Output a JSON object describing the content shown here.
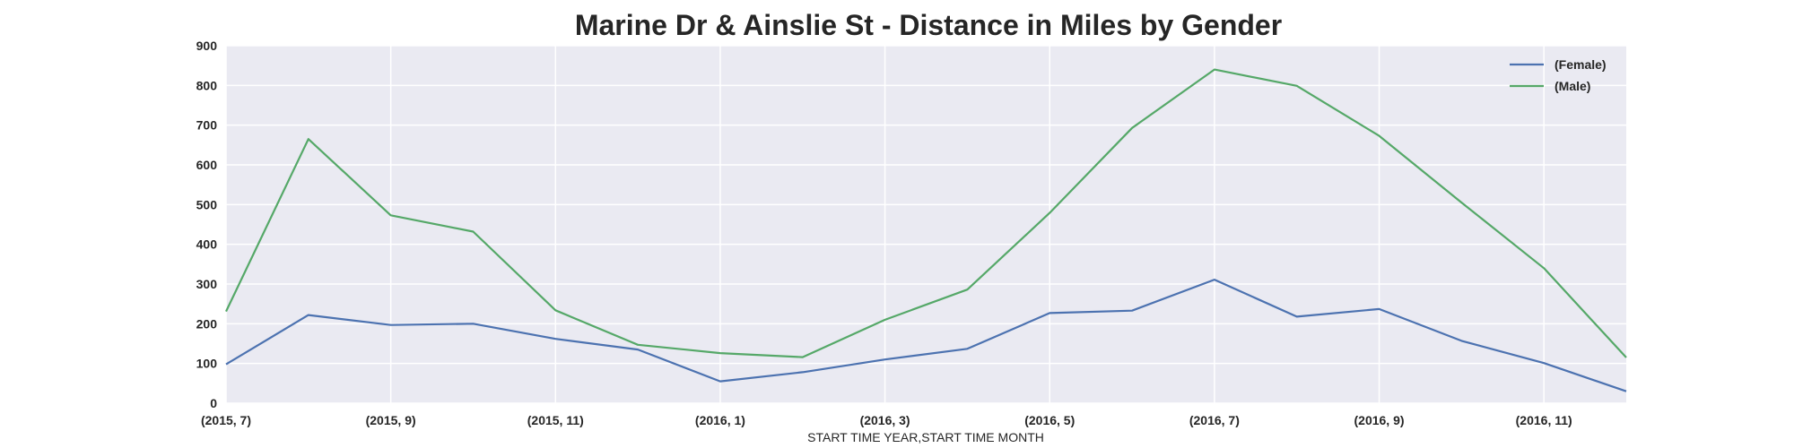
{
  "chart_data": {
    "type": "line",
    "title": "Marine Dr & Ainslie St - Distance in Miles by Gender",
    "xlabel": "START TIME YEAR,START TIME MONTH",
    "ylabel": "",
    "x": [
      "(2015, 7)",
      "(2015, 8)",
      "(2015, 9)",
      "(2015, 10)",
      "(2015, 11)",
      "(2015, 12)",
      "(2016, 1)",
      "(2016, 2)",
      "(2016, 3)",
      "(2016, 4)",
      "(2016, 5)",
      "(2016, 6)",
      "(2016, 7)",
      "(2016, 8)",
      "(2016, 9)",
      "(2016, 10)",
      "(2016, 11)",
      "(2016, 12)"
    ],
    "x_tick_labels": [
      "(2015, 7)",
      "(2015, 9)",
      "(2015, 11)",
      "(2016, 1)",
      "(2016, 3)",
      "(2016, 5)",
      "(2016, 7)",
      "(2016, 9)",
      "(2016, 11)"
    ],
    "y_ticks": [
      "0",
      "100",
      "200",
      "300",
      "400",
      "500",
      "600",
      "700",
      "800",
      "900"
    ],
    "ylim": [
      0,
      900
    ],
    "grid": true,
    "legend_position": "top-right",
    "series": [
      {
        "name": "(Female)",
        "color": "#4c72b0",
        "values": [
          98,
          222,
          197,
          200,
          162,
          135,
          55,
          78,
          110,
          137,
          227,
          233,
          311,
          218,
          237,
          157,
          101,
          30
        ]
      },
      {
        "name": "(Male)",
        "color": "#55a868",
        "values": [
          231,
          665,
          473,
          432,
          234,
          147,
          126,
          116,
          210,
          286,
          479,
          693,
          840,
          799,
          673,
          505,
          340,
          115
        ]
      }
    ]
  }
}
